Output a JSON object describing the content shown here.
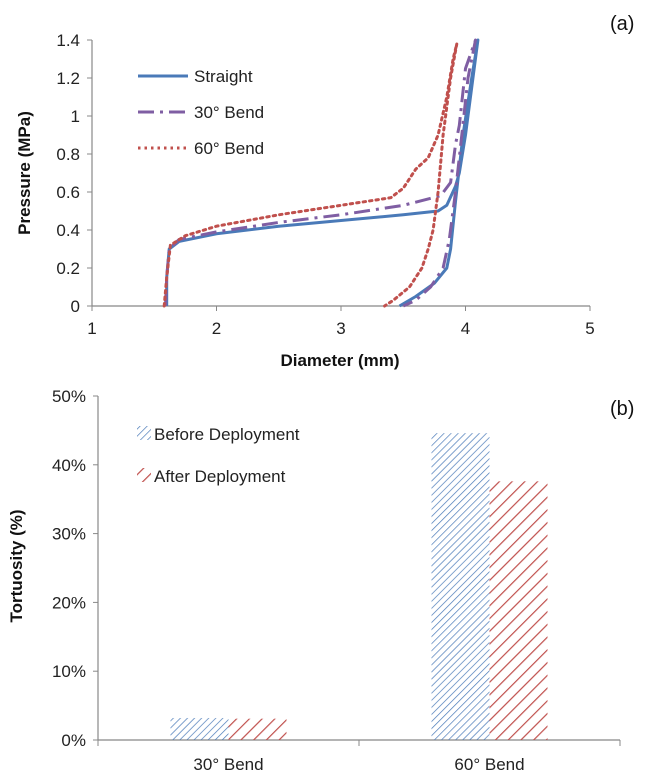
{
  "colors": {
    "blue": "#4a7ab8",
    "purple": "#7f5ea3",
    "red": "#c0504d",
    "axis": "#888888"
  },
  "chart_data": [
    {
      "type": "line",
      "panel_label": "(a)",
      "xlabel": "Diameter (mm)",
      "ylabel": "Pressure (MPa)",
      "xlim": [
        1,
        5
      ],
      "ylim": [
        0,
        1.4
      ],
      "x_ticks": [
        "1",
        "2",
        "3",
        "4",
        "5"
      ],
      "y_ticks": [
        "0",
        "0.2",
        "0.4",
        "0.6",
        "0.8",
        "1",
        "1.2",
        "1.4"
      ],
      "legend_position": "top-left",
      "series": [
        {
          "name": "Straight",
          "color": "#4a7ab8",
          "dash": "solid",
          "points": [
            [
              1.6,
              0
            ],
            [
              1.6,
              0.15
            ],
            [
              1.62,
              0.3
            ],
            [
              1.7,
              0.34
            ],
            [
              2.0,
              0.38
            ],
            [
              2.5,
              0.42
            ],
            [
              3.0,
              0.45
            ],
            [
              3.5,
              0.48
            ],
            [
              3.78,
              0.5
            ],
            [
              3.85,
              0.53
            ],
            [
              3.92,
              0.63
            ],
            [
              3.95,
              0.7
            ],
            [
              4.0,
              0.9
            ],
            [
              4.05,
              1.15
            ],
            [
              4.1,
              1.4
            ],
            [
              4.05,
              1.2
            ],
            [
              3.98,
              0.9
            ],
            [
              3.92,
              0.55
            ],
            [
              3.88,
              0.3
            ],
            [
              3.85,
              0.2
            ],
            [
              3.75,
              0.12
            ],
            [
              3.6,
              0.05
            ],
            [
              3.47,
              0
            ]
          ]
        },
        {
          "name": "30° Bend",
          "color": "#7f5ea3",
          "dash": "dashdot",
          "points": [
            [
              1.59,
              0
            ],
            [
              1.6,
              0.15
            ],
            [
              1.62,
              0.3
            ],
            [
              1.7,
              0.35
            ],
            [
              2.0,
              0.39
            ],
            [
              2.5,
              0.44
            ],
            [
              3.0,
              0.48
            ],
            [
              3.5,
              0.53
            ],
            [
              3.8,
              0.58
            ],
            [
              3.88,
              0.65
            ],
            [
              3.92,
              0.85
            ],
            [
              3.95,
              0.95
            ],
            [
              4.0,
              1.25
            ],
            [
              4.08,
              1.4
            ],
            [
              4.02,
              1.2
            ],
            [
              3.97,
              0.9
            ],
            [
              3.92,
              0.6
            ],
            [
              3.87,
              0.35
            ],
            [
              3.82,
              0.2
            ],
            [
              3.72,
              0.1
            ],
            [
              3.6,
              0.03
            ],
            [
              3.5,
              0
            ]
          ]
        },
        {
          "name": "60° Bend",
          "color": "#c0504d",
          "dash": "dotted",
          "points": [
            [
              1.58,
              0
            ],
            [
              1.6,
              0.15
            ],
            [
              1.63,
              0.32
            ],
            [
              1.75,
              0.37
            ],
            [
              2.0,
              0.42
            ],
            [
              2.5,
              0.48
            ],
            [
              3.0,
              0.53
            ],
            [
              3.4,
              0.57
            ],
            [
              3.5,
              0.62
            ],
            [
              3.6,
              0.72
            ],
            [
              3.7,
              0.78
            ],
            [
              3.78,
              0.9
            ],
            [
              3.85,
              1.1
            ],
            [
              3.9,
              1.3
            ],
            [
              3.93,
              1.38
            ],
            [
              3.88,
              1.2
            ],
            [
              3.82,
              0.9
            ],
            [
              3.78,
              0.6
            ],
            [
              3.74,
              0.4
            ],
            [
              3.7,
              0.3
            ],
            [
              3.65,
              0.2
            ],
            [
              3.55,
              0.1
            ],
            [
              3.42,
              0.03
            ],
            [
              3.35,
              0
            ]
          ]
        }
      ]
    },
    {
      "type": "bar",
      "panel_label": "(b)",
      "xlabel": "",
      "ylabel": "Tortuosity (%)",
      "categories": [
        "30° Bend",
        "60° Bend"
      ],
      "ylim": [
        0,
        50
      ],
      "y_ticks": [
        "0%",
        "10%",
        "20%",
        "30%",
        "40%",
        "50%"
      ],
      "legend_position": "top-left",
      "series": [
        {
          "name": "Before Deployment",
          "color": "#4a7ab8",
          "pattern": "fine-hatch",
          "values": [
            3.2,
            44.6
          ]
        },
        {
          "name": "After Deployment",
          "color": "#c0504d",
          "pattern": "wide-hatch",
          "values": [
            3.1,
            37.6
          ]
        }
      ]
    }
  ]
}
